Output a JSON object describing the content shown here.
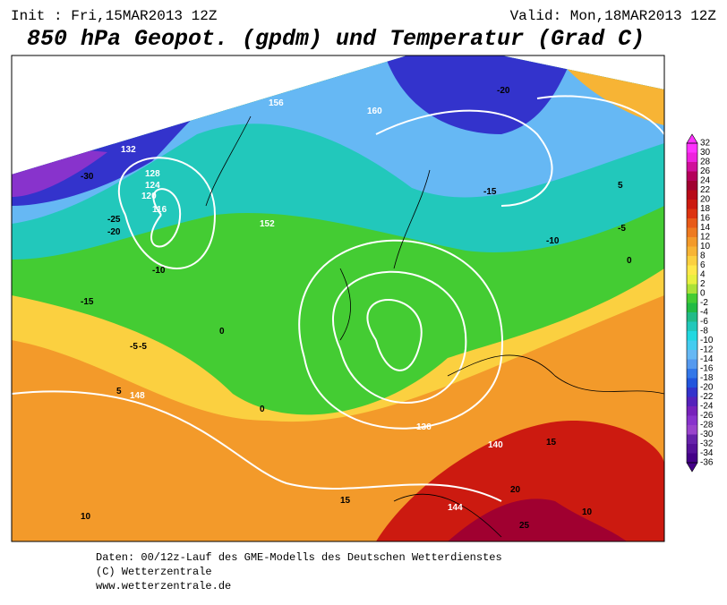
{
  "header": {
    "init": "Init : Fri,15MAR2013 12Z",
    "valid": "Valid: Mon,18MAR2013 12Z",
    "title": "850 hPa Geopot. (gpdm) und Temperatur (Grad C)"
  },
  "legend": {
    "labels": [
      32,
      30,
      28,
      26,
      24,
      22,
      20,
      18,
      16,
      14,
      12,
      10,
      8,
      6,
      4,
      2,
      0,
      -2,
      -4,
      -6,
      -8,
      -10,
      -12,
      -14,
      -16,
      -18,
      -20,
      -22,
      -24,
      -26,
      -28,
      -30,
      -32,
      -34,
      -36
    ],
    "colors": [
      "#ff33ff",
      "#ee22dd",
      "#d0109a",
      "#b4005a",
      "#a00030",
      "#b80a18",
      "#cc1a10",
      "#dd3310",
      "#e85a18",
      "#ee7a20",
      "#f39a2a",
      "#f7b435",
      "#fbd040",
      "#ffe84a",
      "#e8f040",
      "#aae238",
      "#44cc33",
      "#22bb44",
      "#22bb88",
      "#22c8bb",
      "#22d8e0",
      "#44ccf0",
      "#66b8f4",
      "#5599ee",
      "#3377e8",
      "#2255dd",
      "#3333cc",
      "#5522bb",
      "#7722bb",
      "#8833cc",
      "#9944cc",
      "#6622aa",
      "#551199",
      "#440088"
    ]
  },
  "map_labels": [
    "132",
    "128",
    "124",
    "120",
    "116",
    "-30",
    "-25",
    "-20",
    "-15",
    "-10",
    "-5",
    "0",
    "5",
    "10",
    "15",
    "20",
    "25",
    "136",
    "140",
    "144",
    "148",
    "152",
    "156",
    "160",
    "-20",
    "-15",
    "-10",
    "-5",
    "0",
    "5",
    "10",
    "15",
    "-5",
    "0"
  ],
  "footer": [
    "Daten: 00/12z-Lauf des GME-Modells des Deutschen Wetterdienstes",
    "(C) Wetterzentrale",
    "www.wetterzentrale.de"
  ]
}
